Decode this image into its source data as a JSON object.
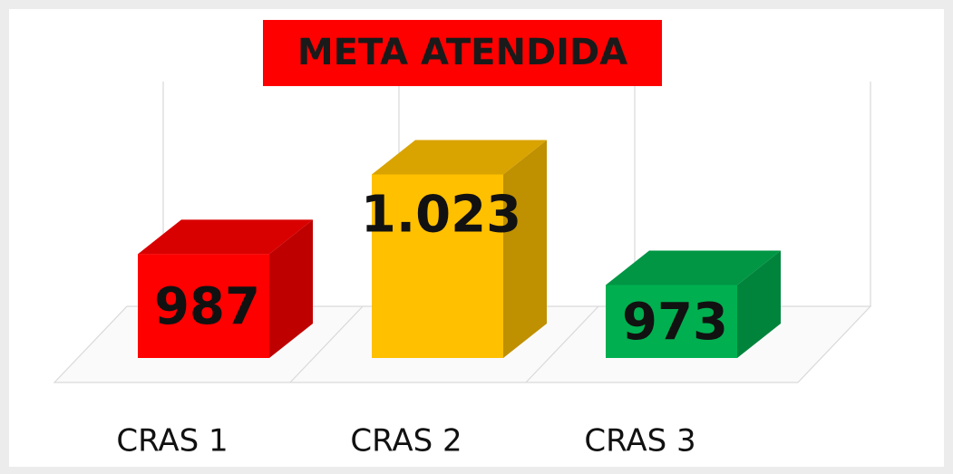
{
  "chart_data": {
    "type": "bar3d",
    "title": "META ATENDIDA",
    "categories": [
      "CRAS 1",
      "CRAS 2",
      "CRAS 3"
    ],
    "values": [
      987,
      1023,
      973
    ],
    "value_labels": [
      "987",
      "1.023",
      "973"
    ],
    "colors": [
      "#ff0000",
      "#ffc000",
      "#00b050"
    ],
    "ylim": [
      940,
      1065
    ]
  }
}
